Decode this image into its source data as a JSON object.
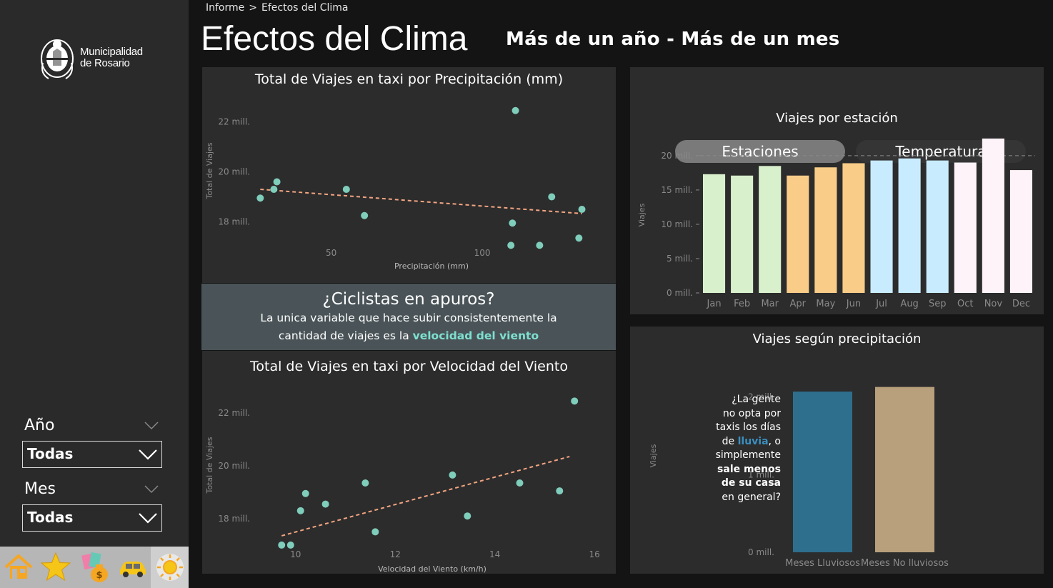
{
  "breadcrumb": {
    "root": "Informe",
    "separator": ">",
    "current": "Efectos del Clima"
  },
  "page": {
    "title": "Efectos del Clima",
    "subtitle": "Más de un año - Más de un mes"
  },
  "logo": {
    "line1": "Municipalidad",
    "line2": "de Rosario",
    "icon": "rosario-coat-of-arms-icon"
  },
  "filters": {
    "year": {
      "label": "Año",
      "value": "Todas"
    },
    "month": {
      "label": "Mes",
      "value": "Todas"
    }
  },
  "nav": [
    {
      "name": "home-icon"
    },
    {
      "name": "star-icon"
    },
    {
      "name": "money-icon"
    },
    {
      "name": "taxi-icon"
    },
    {
      "name": "sun-icon",
      "active": true
    }
  ],
  "banner": {
    "title": "¿Ciclistas en apuros?",
    "line1": "La unica variable que hace subir consistentemente la",
    "line2_prefix": "cantidad de viajes es la ",
    "line2_highlight": "velocidad del viento"
  },
  "tabs": {
    "active": "Estaciones",
    "inactive": "Temperatura"
  },
  "annotation": {
    "l1": "¿La gente",
    "l2": "no opta por",
    "l3": "taxis los días",
    "l4a": "de ",
    "l4b": "lluvia",
    "l4c": ", o",
    "l5": "simplemente",
    "l6": "sale menos",
    "l7": "de su casa",
    "l8": "en general?"
  },
  "colors": {
    "teal": "#7fcdbb",
    "trend": "#f4a582",
    "rain": "#2e6f8e",
    "norain": "#b8a07c"
  },
  "chart_data": [
    {
      "id": "precip",
      "type": "scatter",
      "title": "Total de Viajes en taxi por Precipitación (mm)",
      "xlabel": "Precipitación (mm)",
      "ylabel": "Total de Viajes",
      "xticks": [
        50,
        100
      ],
      "xtick_labels": [
        "50",
        "100"
      ],
      "yticks": [
        22000000,
        20000000,
        18000000
      ],
      "ytick_labels": [
        "22 mill.",
        "20 mill.",
        "18 mill."
      ],
      "xlim": [
        25,
        135
      ],
      "ylim": [
        16700000,
        22900000
      ],
      "points": [
        [
          26.5,
          18950000
        ],
        [
          31,
          19300000
        ],
        [
          32,
          19600000
        ],
        [
          55,
          19300000
        ],
        [
          61,
          18250000
        ],
        [
          111,
          22450000
        ],
        [
          110,
          17950000
        ],
        [
          109.5,
          17060000
        ],
        [
          119,
          17060000
        ],
        [
          123,
          19000000
        ],
        [
          132,
          17350000
        ],
        [
          133,
          18500000
        ]
      ],
      "trend": [
        [
          26.5,
          19300000
        ],
        [
          133,
          18330000
        ]
      ]
    },
    {
      "id": "wind",
      "type": "scatter",
      "title": "Total de Viajes en taxi por Velocidad del Viento",
      "xlabel": "Velocidad del Viento (km/h)",
      "ylabel": "Total de Viajes",
      "xticks": [
        10,
        12,
        14,
        16
      ],
      "xtick_labels": [
        "10",
        "12",
        "14",
        "16"
      ],
      "yticks": [
        22000000,
        20000000,
        18000000
      ],
      "ytick_labels": [
        "22 mill.",
        "20 mill.",
        "18 mill."
      ],
      "xlim": [
        9.2,
        16.3
      ],
      "ylim": [
        16700000,
        23000000
      ],
      "points": [
        [
          9.72,
          17000000
        ],
        [
          9.9,
          17000000
        ],
        [
          10.1,
          18300000
        ],
        [
          10.2,
          18950000
        ],
        [
          10.6,
          18550000
        ],
        [
          11.4,
          19350000
        ],
        [
          11.6,
          17500000
        ],
        [
          13.15,
          19650000
        ],
        [
          13.45,
          18100000
        ],
        [
          14.5,
          19350000
        ],
        [
          15.3,
          19050000
        ],
        [
          15.6,
          22450000
        ]
      ],
      "trend": [
        [
          9.72,
          17350000
        ],
        [
          15.5,
          20350000
        ]
      ]
    },
    {
      "id": "season",
      "type": "bar",
      "title": "Viajes por estación",
      "ylabel": "Viajes",
      "categories": [
        "Jan",
        "Feb",
        "Mar",
        "Apr",
        "May",
        "Jun",
        "Jul",
        "Aug",
        "Sep",
        "Oct",
        "Nov",
        "Dec"
      ],
      "values": [
        17300000,
        17100000,
        18500000,
        17100000,
        18300000,
        18900000,
        19300000,
        19600000,
        19300000,
        19000000,
        22500000,
        17900000
      ],
      "colors": [
        "#d8f0cc",
        "#d8f0cc",
        "#d8f0cc",
        "#f9cd87",
        "#f9cd87",
        "#f9cd87",
        "#c8ecfd",
        "#c8ecfd",
        "#c8ecfd",
        "#fdf3f8",
        "#fdf3f8",
        "#fdf3f8"
      ],
      "yticks": [
        20000000,
        15000000,
        10000000,
        5000000,
        0
      ],
      "ytick_labels": [
        "20 mill.",
        "15 mill.",
        "10 mill.",
        "5 mill.",
        "0 mill."
      ],
      "ylim": [
        0,
        22800000
      ],
      "reference": 20000000
    },
    {
      "id": "rain",
      "type": "bar",
      "title": "Viajes según precipitación",
      "ylabel": "Viajes",
      "categories": [
        "Meses Lluviosos",
        "Meses No lluviosos"
      ],
      "values": [
        2070000,
        2130000
      ],
      "colors": [
        "#2e6f8e",
        "#b8a07c"
      ],
      "yticks": [
        2000000,
        1000000,
        0
      ],
      "ytick_labels": [
        "2 mill.",
        "1 mill.",
        "0 mill."
      ],
      "ylim": [
        0,
        2200000
      ]
    }
  ]
}
